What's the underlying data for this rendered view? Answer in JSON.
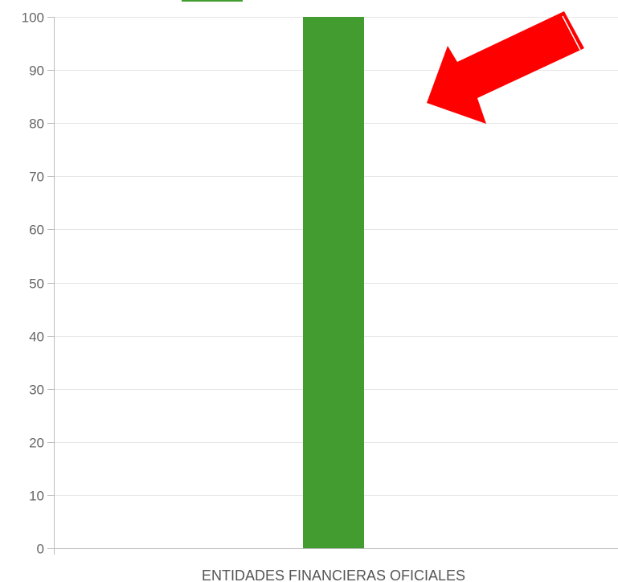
{
  "chart_data": {
    "type": "bar",
    "categories": [
      "ENTIDADES FINANCIERAS OFICIALES"
    ],
    "series": [
      {
        "values": [
          100
        ]
      }
    ],
    "ylim": [
      0,
      100
    ],
    "yticks": [
      0,
      10,
      20,
      30,
      40,
      50,
      60,
      70,
      80,
      90,
      100
    ],
    "grid": true,
    "legend": "top",
    "colors": {
      "bar": "#429c2f",
      "grid": "#e6e6e6",
      "axis": "#bdbdbd",
      "tick_text": "#666666",
      "arrow": "#ff0000"
    }
  },
  "annotation": {
    "icon": "red-arrow-icon"
  }
}
